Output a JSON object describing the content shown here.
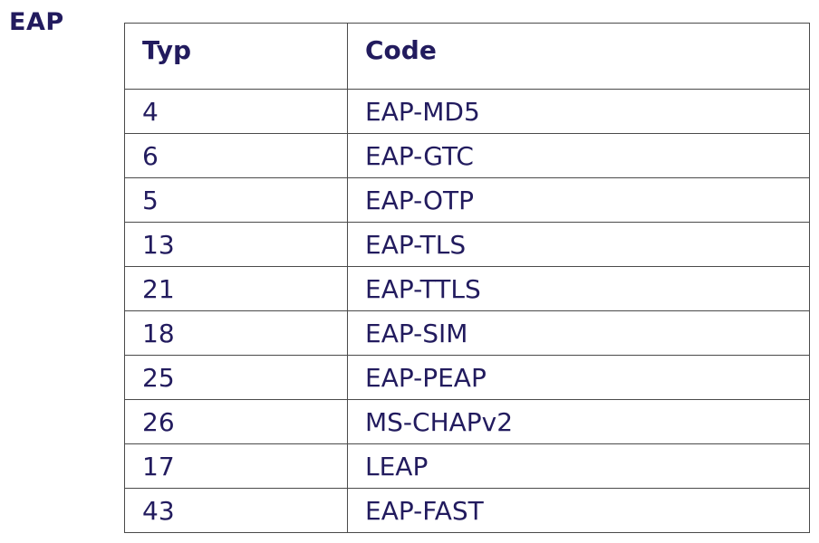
{
  "page": {
    "side_label": "EAP"
  },
  "table": {
    "headers": [
      "Typ",
      "Code"
    ],
    "rows": [
      [
        "4",
        "EAP-MD5"
      ],
      [
        "6",
        "EAP-GTC"
      ],
      [
        "5",
        "EAP-OTP"
      ],
      [
        "13",
        "EAP-TLS"
      ],
      [
        "21",
        "EAP-TTLS"
      ],
      [
        "18",
        "EAP-SIM"
      ],
      [
        "25",
        "EAP-PEAP"
      ],
      [
        "26",
        "MS-CHAPv2"
      ],
      [
        "17",
        "LEAP"
      ],
      [
        "43",
        "EAP-FAST"
      ]
    ]
  },
  "colors": {
    "text": "#221b5e",
    "border": "#4a4a4a",
    "background": "#ffffff"
  }
}
